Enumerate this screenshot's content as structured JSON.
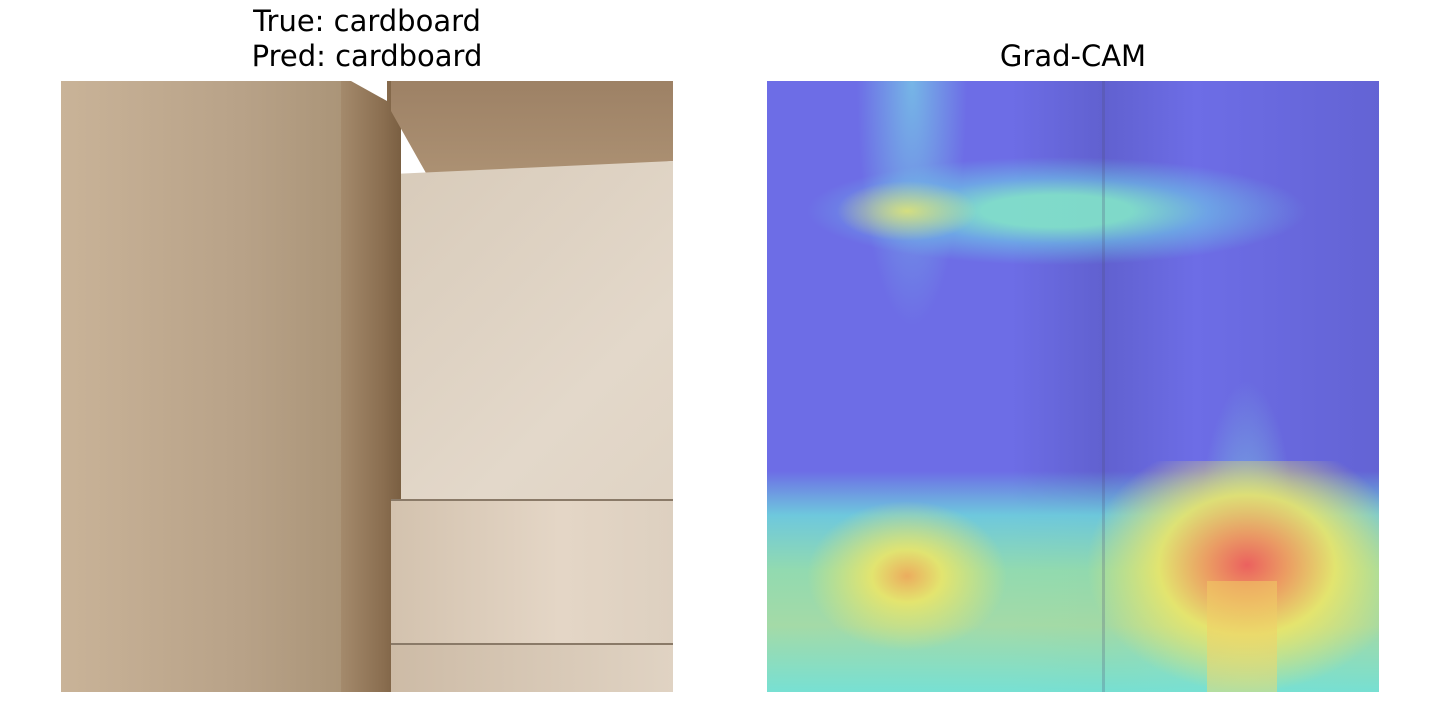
{
  "figure": {
    "left_panel": {
      "title_line1": "True: cardboard",
      "title_line2": "Pred: cardboard",
      "image_subject": "inside corner of a cardboard box"
    },
    "right_panel": {
      "title": "Grad-CAM",
      "colormap": "jet",
      "colors": {
        "low": "#6f6fe8",
        "mid": "#7de8d8",
        "high_mid": "#f0e860",
        "high": "#f06060"
      }
    }
  }
}
